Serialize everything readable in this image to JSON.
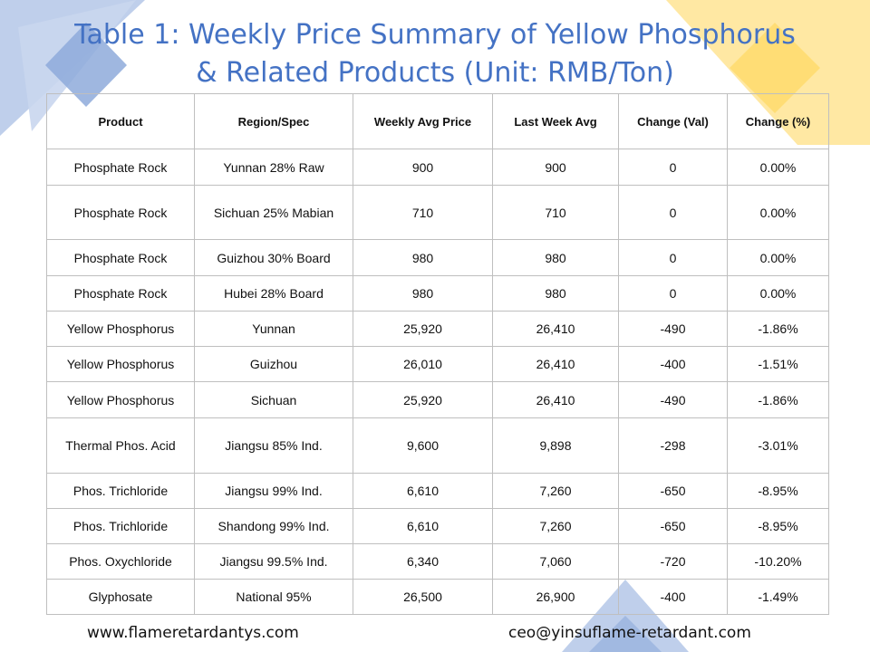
{
  "title": {
    "line1": "Table 1: Weekly Price Summary of Yellow Phosphorus",
    "line2": "& Related Products (Unit: RMB/Ton)"
  },
  "colors": {
    "title": "#4472c4",
    "decor_blue": "#8eaadb",
    "decor_yellow": "#ffd966",
    "grid": "#bfbfbf"
  },
  "table": {
    "headers": [
      "Product",
      "Region/Spec",
      "Weekly Avg Price",
      "Last Week Avg",
      "Change (Val)",
      "Change (%)"
    ],
    "rows": [
      [
        "Phosphate Rock",
        "Yunnan 28% Raw",
        "900",
        "900",
        "0",
        "0.00%"
      ],
      [
        "Phosphate Rock",
        "Sichuan 25% Mabian",
        "710",
        "710",
        "0",
        "0.00%"
      ],
      [
        "Phosphate Rock",
        "Guizhou 30% Board",
        "980",
        "980",
        "0",
        "0.00%"
      ],
      [
        "Phosphate Rock",
        "Hubei 28% Board",
        "980",
        "980",
        "0",
        "0.00%"
      ],
      [
        "Yellow Phosphorus",
        "Yunnan",
        "25,920",
        "26,410",
        "-490",
        "-1.86%"
      ],
      [
        "Yellow Phosphorus",
        "Guizhou",
        "26,010",
        "26,410",
        "-400",
        "-1.51%"
      ],
      [
        "Yellow Phosphorus",
        "Sichuan",
        "25,920",
        "26,410",
        "-490",
        "-1.86%"
      ],
      [
        "Thermal Phos. Acid",
        "Jiangsu 85% Ind.",
        "9,600",
        "9,898",
        "-298",
        "-3.01%"
      ],
      [
        "Phos. Trichloride",
        "Jiangsu 99% Ind.",
        "6,610",
        "7,260",
        "-650",
        "-8.95%"
      ],
      [
        "Phos. Trichloride",
        "Shandong 99% Ind.",
        "6,610",
        "7,260",
        "-650",
        "-8.95%"
      ],
      [
        "Phos. Oxychloride",
        "Jiangsu 99.5% Ind.",
        "6,340",
        "7,060",
        "-720",
        "-10.20%"
      ],
      [
        "Glyphosate",
        "National 95%",
        "26,500",
        "26,900",
        "-400",
        "-1.49%"
      ]
    ]
  },
  "footer": {
    "website": "www.flameretardantys.com",
    "email": "ceo@yinsuflame-retardant.com"
  }
}
